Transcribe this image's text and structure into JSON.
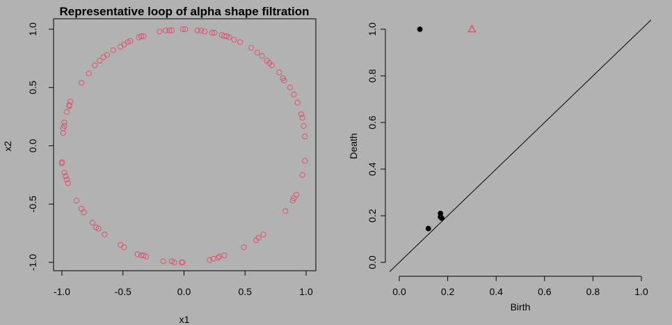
{
  "chart_data": [
    {
      "type": "scatter",
      "title": "Representative loop of alpha shape filtration",
      "xlabel": "x1",
      "ylabel": "x2",
      "xlim": [
        -1.0,
        1.0
      ],
      "ylim": [
        -1.0,
        1.0
      ],
      "x_ticks": [
        "-1.0",
        "-0.5",
        "0.0",
        "0.5",
        "1.0"
      ],
      "y_ticks": [
        "-1.0",
        "-0.5",
        "0.0",
        "0.5",
        "1.0"
      ],
      "marker": "open-circle",
      "point_color": "#df536b",
      "grid": false,
      "points": [
        [
          -0.01,
          1.0
        ],
        [
          0.01,
          1.0
        ],
        [
          -0.1,
          0.99
        ],
        [
          -0.12,
          0.99
        ],
        [
          -0.15,
          0.99
        ],
        [
          -0.2,
          0.98
        ],
        [
          0.11,
          0.99
        ],
        [
          0.14,
          0.99
        ],
        [
          0.17,
          0.98
        ],
        [
          0.23,
          0.97
        ],
        [
          0.25,
          0.97
        ],
        [
          0.31,
          0.95
        ],
        [
          0.33,
          0.94
        ],
        [
          0.35,
          0.94
        ],
        [
          0.37,
          0.93
        ],
        [
          0.41,
          0.91
        ],
        [
          0.46,
          0.89
        ],
        [
          0.55,
          0.84
        ],
        [
          0.6,
          0.8
        ],
        [
          0.64,
          0.77
        ],
        [
          0.68,
          0.73
        ],
        [
          0.7,
          0.71
        ],
        [
          0.72,
          0.69
        ],
        [
          0.78,
          0.63
        ],
        [
          0.81,
          0.58
        ],
        [
          0.82,
          0.56
        ],
        [
          0.87,
          0.5
        ],
        [
          0.9,
          0.44
        ],
        [
          0.93,
          0.37
        ],
        [
          0.96,
          0.27
        ],
        [
          0.97,
          0.24
        ],
        [
          0.98,
          0.17
        ],
        [
          0.99,
          0.08
        ],
        [
          0.99,
          -0.13
        ],
        [
          0.97,
          -0.25
        ],
        [
          0.92,
          -0.42
        ],
        [
          0.9,
          -0.45
        ],
        [
          0.89,
          -0.47
        ],
        [
          0.83,
          -0.56
        ],
        [
          0.65,
          -0.76
        ],
        [
          0.61,
          -0.79
        ],
        [
          0.59,
          -0.81
        ],
        [
          0.49,
          -0.87
        ],
        [
          0.33,
          -0.94
        ],
        [
          0.29,
          -0.95
        ],
        [
          0.28,
          -0.96
        ],
        [
          0.24,
          -0.97
        ],
        [
          0.21,
          -0.98
        ],
        [
          -0.01,
          -1.0
        ],
        [
          -0.02,
          -1.0
        ],
        [
          -0.08,
          -1.0
        ],
        [
          -0.1,
          -0.99
        ],
        [
          -0.17,
          -0.99
        ],
        [
          -0.31,
          -0.95
        ],
        [
          -0.33,
          -0.94
        ],
        [
          -0.35,
          -0.94
        ],
        [
          -0.38,
          -0.93
        ],
        [
          -0.49,
          -0.87
        ],
        [
          -0.52,
          -0.85
        ],
        [
          -0.65,
          -0.76
        ],
        [
          -0.7,
          -0.71
        ],
        [
          -0.72,
          -0.7
        ],
        [
          -0.75,
          -0.66
        ],
        [
          -0.82,
          -0.57
        ],
        [
          -0.84,
          -0.54
        ],
        [
          -0.88,
          -0.47
        ],
        [
          -0.95,
          -0.32
        ],
        [
          -0.96,
          -0.29
        ],
        [
          -0.97,
          -0.26
        ],
        [
          -0.98,
          -0.23
        ],
        [
          -1.0,
          -0.15
        ],
        [
          -1.0,
          -0.14
        ],
        [
          -0.99,
          0.11
        ],
        [
          -0.99,
          0.15
        ],
        [
          -0.98,
          0.17
        ],
        [
          -0.98,
          0.2
        ],
        [
          -0.96,
          0.29
        ],
        [
          -0.94,
          0.34
        ],
        [
          -0.94,
          0.35
        ],
        [
          -0.93,
          0.38
        ],
        [
          -0.84,
          0.54
        ],
        [
          -0.78,
          0.62
        ],
        [
          -0.73,
          0.69
        ],
        [
          -0.69,
          0.73
        ],
        [
          -0.66,
          0.76
        ],
        [
          -0.63,
          0.78
        ],
        [
          -0.58,
          0.82
        ],
        [
          -0.52,
          0.85
        ],
        [
          -0.49,
          0.87
        ],
        [
          -0.46,
          0.89
        ],
        [
          -0.44,
          0.9
        ],
        [
          -0.37,
          0.93
        ],
        [
          -0.35,
          0.94
        ],
        [
          -0.33,
          0.94
        ]
      ]
    },
    {
      "type": "scatter",
      "title": "",
      "xlabel": "Birth",
      "ylabel": "Death",
      "xlim": [
        0.0,
        1.0
      ],
      "ylim": [
        0.0,
        1.0
      ],
      "x_ticks": [
        "0.0",
        "0.2",
        "0.4",
        "0.6",
        "0.8",
        "1.0"
      ],
      "y_ticks": [
        "0.0",
        "0.2",
        "0.4",
        "0.6",
        "0.8",
        "1.0"
      ],
      "diagonal": true,
      "grid": false,
      "series": [
        {
          "marker": "filled-circle",
          "color": "#000000",
          "points": [
            [
              0.085,
              1.0
            ],
            [
              0.12,
              0.145
            ],
            [
              0.17,
              0.21
            ],
            [
              0.17,
              0.195
            ],
            [
              0.175,
              0.19
            ]
          ]
        },
        {
          "marker": "open-triangle",
          "color": "#df536b",
          "points": [
            [
              0.3,
              1.0
            ]
          ]
        }
      ]
    }
  ]
}
